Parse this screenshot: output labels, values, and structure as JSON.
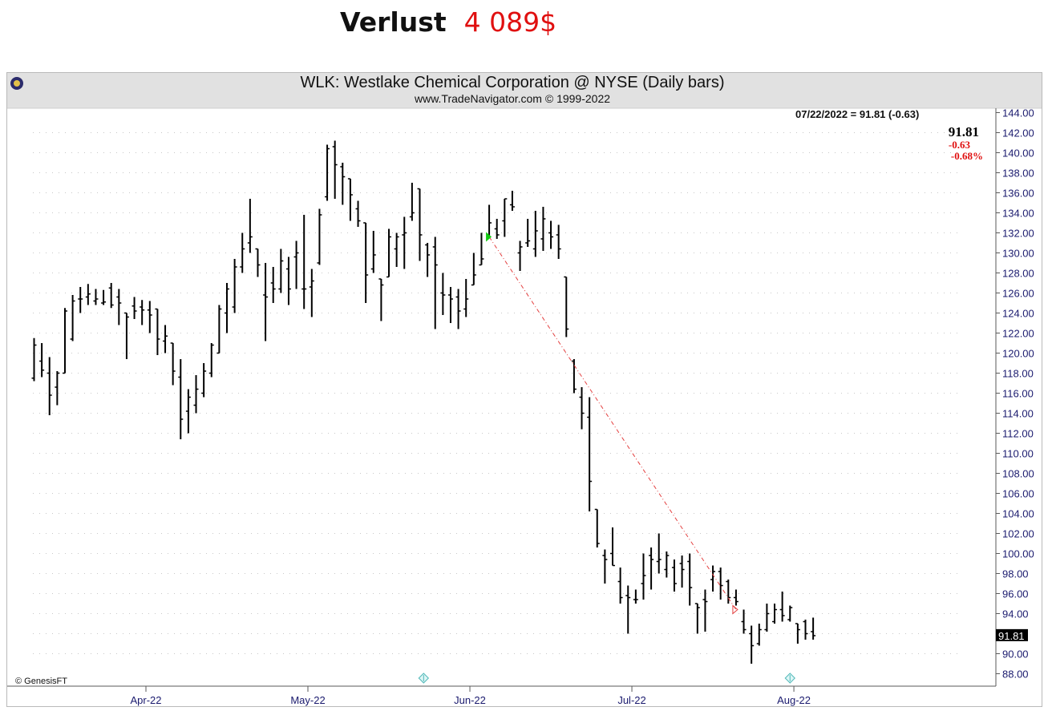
{
  "headline": {
    "label": "Verlust",
    "value": "4 089$"
  },
  "chart_data": {
    "type": "ohlc",
    "title": "WLK:  Westlake Chemical Corporation @ NYSE  (Daily bars)",
    "subtitle": "www.TradeNavigator.com © 1999-2022",
    "info_line": "07/22/2022 = 91.81 (-0.63)",
    "last_price": "91.81",
    "change": "-0.63",
    "change_pct": "-0.68%",
    "last_marker": "91.81",
    "watermark": "© GenesisFT",
    "ylim": [
      88,
      144
    ],
    "yticks": [
      "88.00",
      "90.00",
      "92.00",
      "94.00",
      "96.00",
      "98.00",
      "100.00",
      "102.00",
      "104.00",
      "106.00",
      "108.00",
      "110.00",
      "112.00",
      "114.00",
      "116.00",
      "118.00",
      "120.00",
      "122.00",
      "124.00",
      "126.00",
      "128.00",
      "130.00",
      "132.00",
      "134.00",
      "136.00",
      "138.00",
      "140.00",
      "142.00",
      "144.00"
    ],
    "months": [
      {
        "label": "Apr-22",
        "index": 14.5
      },
      {
        "label": "May-22",
        "index": 35.5
      },
      {
        "label": "Jun-22",
        "index": 56.5
      },
      {
        "label": "Jul-22",
        "index": 77.5
      },
      {
        "label": "Aug-22",
        "index": 98.5
      }
    ],
    "bars": [
      {
        "o": 117.5,
        "h": 121.5,
        "l": 117.2,
        "c": 120.8
      },
      {
        "o": 119.2,
        "h": 121.0,
        "l": 117.6,
        "c": 118.3
      },
      {
        "o": 118.0,
        "h": 119.6,
        "l": 113.8,
        "c": 115.8
      },
      {
        "o": 116.6,
        "h": 118.2,
        "l": 114.8,
        "c": 118.0
      },
      {
        "o": 118.0,
        "h": 124.5,
        "l": 118.0,
        "c": 124.2
      },
      {
        "o": 121.4,
        "h": 125.8,
        "l": 121.2,
        "c": 125.2
      },
      {
        "o": 125.4,
        "h": 126.6,
        "l": 124.0,
        "c": 125.4
      },
      {
        "o": 125.6,
        "h": 126.9,
        "l": 124.8,
        "c": 125.9
      },
      {
        "o": 125.2,
        "h": 126.4,
        "l": 124.8,
        "c": 125.4
      },
      {
        "o": 125.0,
        "h": 126.3,
        "l": 124.8,
        "c": 125.1
      },
      {
        "o": 126.5,
        "h": 127.0,
        "l": 124.5,
        "c": 124.8
      },
      {
        "o": 125.6,
        "h": 126.4,
        "l": 122.8,
        "c": 125.0
      },
      {
        "o": 124.0,
        "h": 124.0,
        "l": 119.4,
        "c": 123.6
      },
      {
        "o": 124.7,
        "h": 125.6,
        "l": 123.4,
        "c": 124.2
      },
      {
        "o": 124.6,
        "h": 125.3,
        "l": 122.8,
        "c": 124.3
      },
      {
        "o": 124.3,
        "h": 125.2,
        "l": 122.0,
        "c": 123.8
      },
      {
        "o": 124.4,
        "h": 124.4,
        "l": 119.8,
        "c": 121.4
      },
      {
        "o": 121.2,
        "h": 122.8,
        "l": 120.0,
        "c": 121.7
      },
      {
        "o": 121.0,
        "h": 121.0,
        "l": 116.8,
        "c": 118.2
      },
      {
        "o": 117.6,
        "h": 119.4,
        "l": 111.4,
        "c": 113.4
      },
      {
        "o": 114.2,
        "h": 116.4,
        "l": 112.0,
        "c": 115.6
      },
      {
        "o": 114.8,
        "h": 117.8,
        "l": 114.0,
        "c": 116.4
      },
      {
        "o": 116.0,
        "h": 119.0,
        "l": 115.6,
        "c": 118.2
      },
      {
        "o": 118.0,
        "h": 121.0,
        "l": 117.6,
        "c": 120.8
      },
      {
        "o": 120.0,
        "h": 124.8,
        "l": 120.0,
        "c": 124.4
      },
      {
        "o": 124.0,
        "h": 127.0,
        "l": 122.0,
        "c": 126.4
      },
      {
        "o": 124.6,
        "h": 129.4,
        "l": 124.0,
        "c": 128.6
      },
      {
        "o": 128.6,
        "h": 132.0,
        "l": 128.0,
        "c": 130.4
      },
      {
        "o": 131.0,
        "h": 135.4,
        "l": 130.0,
        "c": 131.6
      },
      {
        "o": 130.4,
        "h": 130.4,
        "l": 127.6,
        "c": 128.8
      },
      {
        "o": 125.8,
        "h": 129.0,
        "l": 121.2,
        "c": 125.6
      },
      {
        "o": 127.0,
        "h": 128.6,
        "l": 125.0,
        "c": 126.4
      },
      {
        "o": 126.4,
        "h": 130.4,
        "l": 126.0,
        "c": 129.2
      },
      {
        "o": 128.4,
        "h": 129.6,
        "l": 124.8,
        "c": 126.4
      },
      {
        "o": 129.6,
        "h": 131.2,
        "l": 126.4,
        "c": 130.0
      },
      {
        "o": 126.4,
        "h": 133.8,
        "l": 124.4,
        "c": 126.4
      },
      {
        "o": 126.6,
        "h": 128.4,
        "l": 123.6,
        "c": 127.2
      },
      {
        "o": 129.0,
        "h": 134.4,
        "l": 128.8,
        "c": 133.8
      },
      {
        "o": 135.6,
        "h": 140.8,
        "l": 135.2,
        "c": 140.4
      },
      {
        "o": 140.6,
        "h": 141.2,
        "l": 135.4,
        "c": 138.8
      },
      {
        "o": 138.6,
        "h": 139.0,
        "l": 134.8,
        "c": 137.6
      },
      {
        "o": 137.4,
        "h": 137.4,
        "l": 133.2,
        "c": 135.8
      },
      {
        "o": 134.4,
        "h": 135.2,
        "l": 132.6,
        "c": 133.2
      },
      {
        "o": 133.0,
        "h": 133.0,
        "l": 125.0,
        "c": 127.8
      },
      {
        "o": 128.4,
        "h": 132.2,
        "l": 128.0,
        "c": 129.8
      },
      {
        "o": 127.4,
        "h": 127.4,
        "l": 123.2,
        "c": 126.8
      },
      {
        "o": 127.6,
        "h": 132.4,
        "l": 127.6,
        "c": 131.6
      },
      {
        "o": 130.4,
        "h": 132.0,
        "l": 128.6,
        "c": 131.6
      },
      {
        "o": 131.8,
        "h": 133.6,
        "l": 128.4,
        "c": 132.0
      },
      {
        "o": 133.6,
        "h": 137.0,
        "l": 133.2,
        "c": 134.0
      },
      {
        "o": 136.4,
        "h": 136.4,
        "l": 129.2,
        "c": 131.8
      },
      {
        "o": 130.8,
        "h": 131.0,
        "l": 127.6,
        "c": 129.8
      },
      {
        "o": 130.6,
        "h": 131.6,
        "l": 122.4,
        "c": 128.8
      },
      {
        "o": 126.0,
        "h": 128.0,
        "l": 123.8,
        "c": 125.8
      },
      {
        "o": 125.8,
        "h": 126.6,
        "l": 123.0,
        "c": 125.4
      },
      {
        "o": 125.6,
        "h": 126.4,
        "l": 122.4,
        "c": 124.2
      },
      {
        "o": 124.4,
        "h": 127.4,
        "l": 123.6,
        "c": 125.4
      },
      {
        "o": 126.8,
        "h": 130.0,
        "l": 126.8,
        "c": 127.8
      },
      {
        "o": 128.8,
        "h": 132.0,
        "l": 128.8,
        "c": 129.4
      },
      {
        "o": 131.6,
        "h": 134.8,
        "l": 131.6,
        "c": 133.0
      },
      {
        "o": 132.4,
        "h": 133.4,
        "l": 131.4,
        "c": 131.8
      },
      {
        "o": 133.2,
        "h": 135.4,
        "l": 131.6,
        "c": 135.4
      },
      {
        "o": 134.8,
        "h": 136.2,
        "l": 134.2,
        "c": 134.6
      },
      {
        "o": 130.0,
        "h": 131.2,
        "l": 128.2,
        "c": 130.6
      },
      {
        "o": 131.0,
        "h": 133.4,
        "l": 130.6,
        "c": 131.2
      },
      {
        "o": 130.4,
        "h": 134.2,
        "l": 129.6,
        "c": 132.2
      },
      {
        "o": 131.4,
        "h": 134.6,
        "l": 130.2,
        "c": 133.4
      },
      {
        "o": 132.0,
        "h": 133.2,
        "l": 130.4,
        "c": 131.6
      },
      {
        "o": 131.8,
        "h": 132.8,
        "l": 129.4,
        "c": 130.4
      },
      {
        "o": 127.6,
        "h": 127.6,
        "l": 121.6,
        "c": 122.4
      },
      {
        "o": 119.2,
        "h": 119.4,
        "l": 116.0,
        "c": 116.4
      },
      {
        "o": 115.6,
        "h": 116.6,
        "l": 112.4,
        "c": 114.0
      },
      {
        "o": 113.6,
        "h": 115.6,
        "l": 104.2,
        "c": 107.2
      },
      {
        "o": 104.4,
        "h": 104.4,
        "l": 100.6,
        "c": 101.0
      },
      {
        "o": 99.8,
        "h": 100.4,
        "l": 97.0,
        "c": 99.4
      },
      {
        "o": 100.0,
        "h": 102.6,
        "l": 98.8,
        "c": 98.8
      },
      {
        "o": 97.2,
        "h": 98.6,
        "l": 95.0,
        "c": 95.6
      },
      {
        "o": 95.8,
        "h": 96.8,
        "l": 92.0,
        "c": 95.6
      },
      {
        "o": 95.4,
        "h": 96.4,
        "l": 95.0,
        "c": 95.4
      },
      {
        "o": 97.0,
        "h": 100.0,
        "l": 95.4,
        "c": 97.8
      },
      {
        "o": 99.8,
        "h": 100.6,
        "l": 96.4,
        "c": 99.4
      },
      {
        "o": 99.2,
        "h": 102.0,
        "l": 98.0,
        "c": 99.4
      },
      {
        "o": 98.4,
        "h": 100.2,
        "l": 97.6,
        "c": 99.8
      },
      {
        "o": 98.6,
        "h": 99.4,
        "l": 96.2,
        "c": 97.0
      },
      {
        "o": 99.0,
        "h": 99.8,
        "l": 96.6,
        "c": 98.4
      },
      {
        "o": 99.2,
        "h": 100.0,
        "l": 94.8,
        "c": 96.6
      },
      {
        "o": 95.0,
        "h": 95.0,
        "l": 92.0,
        "c": 94.6
      },
      {
        "o": 95.4,
        "h": 96.4,
        "l": 92.2,
        "c": 95.2
      },
      {
        "o": 97.4,
        "h": 98.8,
        "l": 96.2,
        "c": 98.2
      },
      {
        "o": 98.2,
        "h": 98.6,
        "l": 95.4,
        "c": 96.8
      },
      {
        "o": 97.2,
        "h": 97.4,
        "l": 95.0,
        "c": 95.6
      },
      {
        "o": 95.6,
        "h": 96.4,
        "l": 94.8,
        "c": 95.2
      },
      {
        "o": 93.2,
        "h": 94.4,
        "l": 92.0,
        "c": 92.4
      },
      {
        "o": 92.0,
        "h": 92.8,
        "l": 89.0,
        "c": 90.8
      },
      {
        "o": 91.0,
        "h": 93.0,
        "l": 90.8,
        "c": 92.4
      },
      {
        "o": 92.4,
        "h": 95.0,
        "l": 92.2,
        "c": 94.0
      },
      {
        "o": 93.2,
        "h": 95.0,
        "l": 93.0,
        "c": 94.4
      },
      {
        "o": 94.4,
        "h": 96.2,
        "l": 93.2,
        "c": 93.8
      },
      {
        "o": 93.4,
        "h": 94.8,
        "l": 93.2,
        "c": 94.6
      },
      {
        "o": 93.0,
        "h": 93.0,
        "l": 91.0,
        "c": 92.4
      },
      {
        "o": 93.2,
        "h": 93.4,
        "l": 91.4,
        "c": 92.0
      },
      {
        "o": 92.2,
        "h": 93.6,
        "l": 91.4,
        "c": 91.8
      }
    ],
    "trade_entry": {
      "index": 59,
      "price": 131.6
    },
    "trade_exit": {
      "index": 91,
      "price": 94.4
    },
    "trade_entry_color": "#12c912",
    "trade_line_color": "#e44040",
    "event_markers": [
      {
        "index": 50.5
      },
      {
        "index": 98.0
      }
    ],
    "colors": {
      "bar": "#000000",
      "price_up": "#000000",
      "price_down": "#e01010",
      "axis_text": "#1a1a6e",
      "grid": "#c8c8c8"
    }
  }
}
